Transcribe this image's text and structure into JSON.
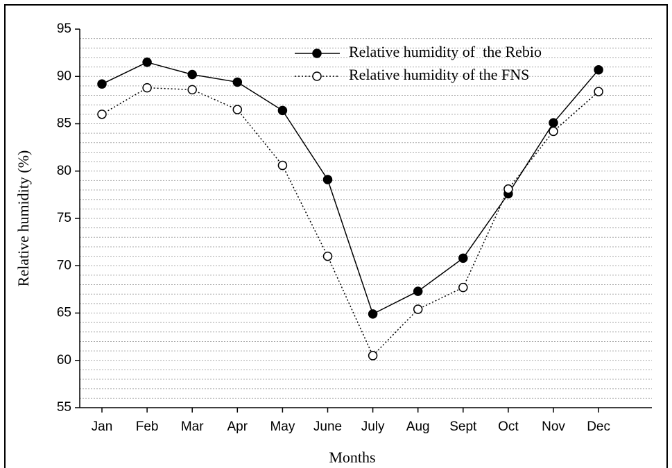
{
  "chart_data": {
    "type": "line",
    "xlabel": "Months",
    "ylabel": "Relative humidity (%)",
    "categories": [
      "Jan",
      "Feb",
      "Mar",
      "Apr",
      "May",
      "June",
      "July",
      "Aug",
      "Sept",
      "Oct",
      "Nov",
      "Dec"
    ],
    "series": [
      {
        "name": "Relative humidity of  the Rebio",
        "color": "#000000",
        "marker": "filled",
        "linestyle": "solid",
        "values": [
          89.2,
          91.5,
          90.2,
          89.4,
          86.4,
          79.1,
          64.9,
          67.3,
          70.8,
          77.6,
          85.1,
          90.7
        ]
      },
      {
        "name": "Relative humidity of the FNS",
        "color": "#000000",
        "marker": "open",
        "linestyle": "dotted",
        "values": [
          86.0,
          88.8,
          88.6,
          86.5,
          80.6,
          71.0,
          60.5,
          65.4,
          67.7,
          78.1,
          84.2,
          88.4
        ]
      }
    ],
    "ylim": [
      55,
      95
    ],
    "yticks": [
      55,
      60,
      65,
      70,
      75,
      80,
      85,
      90,
      95
    ],
    "ygrid": [
      56,
      57,
      58,
      59,
      60,
      61,
      62,
      63,
      64,
      65,
      66,
      67,
      68,
      69,
      70,
      71,
      72,
      73,
      74,
      75,
      76,
      77,
      78,
      79,
      80,
      81,
      82,
      83,
      84,
      85,
      86,
      87,
      88,
      89,
      90,
      91,
      92,
      93,
      94
    ],
    "grid": true,
    "legend": "upper right"
  }
}
